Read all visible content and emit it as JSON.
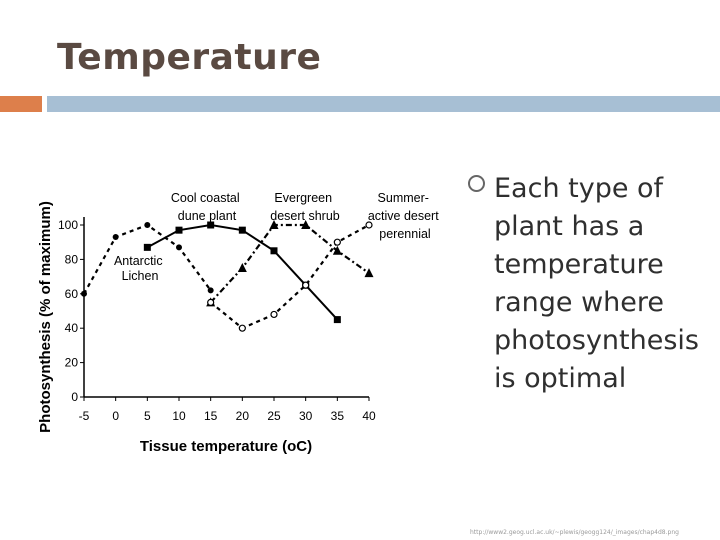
{
  "slide": {
    "title": "Temperature",
    "bullet": "Each type of plant has a temperature range where photosynthesis is optimal",
    "source": "http://www2.geog.ucl.ac.uk/~plewis/geogg124/_images/chap4d8.png",
    "colors": {
      "title": "#5a4a42",
      "accent_orange": "#dd7f4b",
      "accent_blue": "#a7bfd4"
    }
  },
  "chart_data": {
    "type": "line",
    "xlabel": "Tissue temperature (oC)",
    "ylabel": "Photosynthesis (% of maximum)",
    "xlim": [
      -5,
      40
    ],
    "ylim": [
      0,
      100
    ],
    "xticks": [
      "-5",
      "0",
      "5",
      "10",
      "15",
      "20",
      "25",
      "30",
      "35",
      "40"
    ],
    "yticks": [
      "0",
      "20",
      "40",
      "60",
      "80",
      "100"
    ],
    "series": [
      {
        "name": "Antarctic Lichen",
        "style": "dashed",
        "marker": "circle-filled",
        "x": [
          -5,
          0,
          5,
          10,
          15
        ],
        "y": [
          60,
          93,
          100,
          87,
          62
        ]
      },
      {
        "name": "Cool coastal dune plant",
        "style": "solid",
        "marker": "square",
        "x": [
          5,
          10,
          15,
          20,
          25,
          30,
          35
        ],
        "y": [
          87,
          97,
          100,
          97,
          85,
          65,
          45
        ]
      },
      {
        "name": "Evergreen desert shrub",
        "style": "dash-dot",
        "marker": "triangle",
        "x": [
          15,
          20,
          25,
          30,
          35,
          40
        ],
        "y": [
          55,
          75,
          100,
          100,
          85,
          72
        ]
      },
      {
        "name": "Summer-active desert perennial",
        "style": "dashed",
        "marker": "circle-open",
        "x": [
          15,
          20,
          25,
          30,
          35,
          40
        ],
        "y": [
          55,
          40,
          48,
          65,
          90,
          100
        ]
      }
    ],
    "labels": {
      "cool_coastal": [
        "Cool coastal",
        "dune plant"
      ],
      "evergreen": [
        "Evergreen",
        "desert shrub"
      ],
      "summer": [
        "Summer-",
        "active desert",
        "perennial"
      ],
      "lichen": [
        "Antarctic",
        "Lichen"
      ]
    },
    "grid": false
  }
}
